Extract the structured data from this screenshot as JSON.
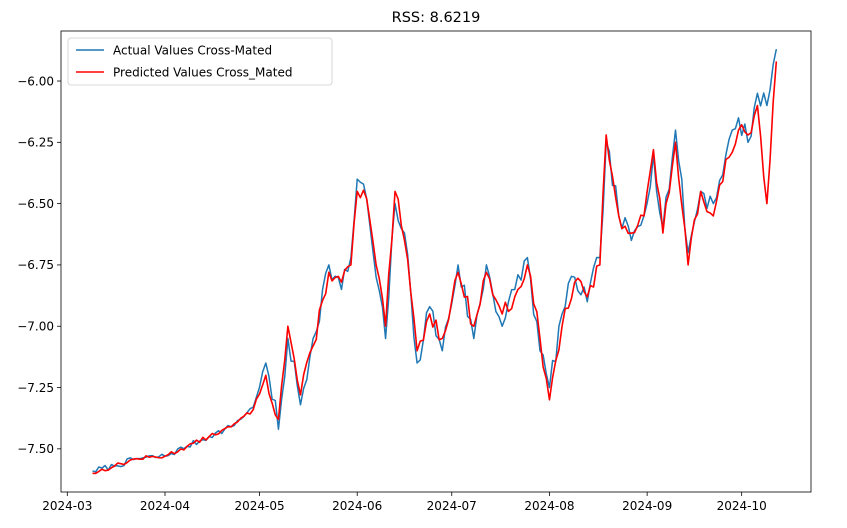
{
  "chart_data": {
    "type": "line",
    "title": "RSS: 8.6219",
    "xlabel": "",
    "ylabel": "",
    "x_range": [
      "2024-03-09",
      "2024-10-12"
    ],
    "xlim": [
      "2024-02-28",
      "2024-10-23"
    ],
    "ylim": [
      -7.676,
      -5.796
    ],
    "x_ticks": [
      "2024-03",
      "2024-04",
      "2024-05",
      "2024-06",
      "2024-07",
      "2024-08",
      "2024-09",
      "2024-10"
    ],
    "y_ticks": [
      -6.0,
      -6.25,
      -6.5,
      -6.75,
      -7.0,
      -7.25,
      -7.5
    ],
    "y_tick_labels": [
      "−6.00",
      "−6.25",
      "−6.50",
      "−6.75",
      "−7.00",
      "−7.25",
      "−7.50"
    ],
    "grid": false,
    "legend": "top-left",
    "series": [
      {
        "name": "Actual Values Cross-Mated",
        "color": "#1f77b4",
        "anchors": [
          [
            "2024-03-09",
            -7.59
          ],
          [
            "2024-03-16",
            -7.57
          ],
          [
            "2024-03-23",
            -7.54
          ],
          [
            "2024-04-01",
            -7.53
          ],
          [
            "2024-04-08",
            -7.49
          ],
          [
            "2024-04-15",
            -7.45
          ],
          [
            "2024-04-22",
            -7.41
          ],
          [
            "2024-04-29",
            -7.33
          ],
          [
            "2024-05-03",
            -7.15
          ],
          [
            "2024-05-07",
            -7.42
          ],
          [
            "2024-05-10",
            -7.05
          ],
          [
            "2024-05-14",
            -7.32
          ],
          [
            "2024-05-18",
            -7.05
          ],
          [
            "2024-05-23",
            -6.75
          ],
          [
            "2024-05-27",
            -6.85
          ],
          [
            "2024-05-30",
            -6.72
          ],
          [
            "2024-06-01",
            -6.4
          ],
          [
            "2024-06-04",
            -6.48
          ],
          [
            "2024-06-07",
            -6.8
          ],
          [
            "2024-06-10",
            -7.05
          ],
          [
            "2024-06-13",
            -6.5
          ],
          [
            "2024-06-16",
            -6.62
          ],
          [
            "2024-06-20",
            -7.15
          ],
          [
            "2024-06-24",
            -6.92
          ],
          [
            "2024-06-28",
            -7.1
          ],
          [
            "2024-07-03",
            -6.75
          ],
          [
            "2024-07-08",
            -7.05
          ],
          [
            "2024-07-12",
            -6.75
          ],
          [
            "2024-07-17",
            -7.0
          ],
          [
            "2024-07-21",
            -6.85
          ],
          [
            "2024-07-25",
            -6.72
          ],
          [
            "2024-07-29",
            -7.1
          ],
          [
            "2024-08-01",
            -7.25
          ],
          [
            "2024-08-05",
            -6.95
          ],
          [
            "2024-08-09",
            -6.8
          ],
          [
            "2024-08-13",
            -6.9
          ],
          [
            "2024-08-17",
            -6.72
          ],
          [
            "2024-08-19",
            -6.25
          ],
          [
            "2024-08-23",
            -6.55
          ],
          [
            "2024-08-27",
            -6.65
          ],
          [
            "2024-08-31",
            -6.55
          ],
          [
            "2024-09-03",
            -6.3
          ],
          [
            "2024-09-06",
            -6.6
          ],
          [
            "2024-09-10",
            -6.2
          ],
          [
            "2024-09-14",
            -6.7
          ],
          [
            "2024-09-18",
            -6.45
          ],
          [
            "2024-09-22",
            -6.5
          ],
          [
            "2024-09-26",
            -6.3
          ],
          [
            "2024-09-30",
            -6.15
          ],
          [
            "2024-10-03",
            -6.25
          ],
          [
            "2024-10-06",
            -6.05
          ],
          [
            "2024-10-09",
            -6.1
          ],
          [
            "2024-10-12",
            -5.87
          ]
        ],
        "noise": 0.05,
        "seed": 7
      },
      {
        "name": "Predicted Values Cross_Mated",
        "color": "#ff0000",
        "anchors": [
          [
            "2024-03-09",
            -7.6
          ],
          [
            "2024-03-16",
            -7.57
          ],
          [
            "2024-03-23",
            -7.54
          ],
          [
            "2024-04-01",
            -7.53
          ],
          [
            "2024-04-08",
            -7.49
          ],
          [
            "2024-04-15",
            -7.45
          ],
          [
            "2024-04-22",
            -7.41
          ],
          [
            "2024-04-29",
            -7.34
          ],
          [
            "2024-05-03",
            -7.2
          ],
          [
            "2024-05-07",
            -7.38
          ],
          [
            "2024-05-10",
            -7.0
          ],
          [
            "2024-05-14",
            -7.28
          ],
          [
            "2024-05-18",
            -7.08
          ],
          [
            "2024-05-23",
            -6.78
          ],
          [
            "2024-05-27",
            -6.82
          ],
          [
            "2024-05-30",
            -6.75
          ],
          [
            "2024-06-01",
            -6.45
          ],
          [
            "2024-06-04",
            -6.48
          ],
          [
            "2024-06-07",
            -6.75
          ],
          [
            "2024-06-10",
            -7.0
          ],
          [
            "2024-06-13",
            -6.45
          ],
          [
            "2024-06-16",
            -6.65
          ],
          [
            "2024-06-20",
            -7.1
          ],
          [
            "2024-06-24",
            -6.95
          ],
          [
            "2024-06-28",
            -7.05
          ],
          [
            "2024-07-03",
            -6.78
          ],
          [
            "2024-07-08",
            -7.0
          ],
          [
            "2024-07-12",
            -6.78
          ],
          [
            "2024-07-17",
            -6.95
          ],
          [
            "2024-07-21",
            -6.88
          ],
          [
            "2024-07-25",
            -6.75
          ],
          [
            "2024-07-29",
            -7.05
          ],
          [
            "2024-08-01",
            -7.3
          ],
          [
            "2024-08-05",
            -7.0
          ],
          [
            "2024-08-09",
            -6.82
          ],
          [
            "2024-08-13",
            -6.88
          ],
          [
            "2024-08-17",
            -6.75
          ],
          [
            "2024-08-19",
            -6.22
          ],
          [
            "2024-08-23",
            -6.55
          ],
          [
            "2024-08-27",
            -6.62
          ],
          [
            "2024-08-31",
            -6.55
          ],
          [
            "2024-09-03",
            -6.28
          ],
          [
            "2024-09-06",
            -6.62
          ],
          [
            "2024-09-10",
            -6.25
          ],
          [
            "2024-09-14",
            -6.75
          ],
          [
            "2024-09-18",
            -6.45
          ],
          [
            "2024-09-22",
            -6.55
          ],
          [
            "2024-09-26",
            -6.32
          ],
          [
            "2024-09-30",
            -6.2
          ],
          [
            "2024-10-03",
            -6.22
          ],
          [
            "2024-10-06",
            -6.1
          ],
          [
            "2024-10-09",
            -6.5
          ],
          [
            "2024-10-12",
            -5.92
          ]
        ],
        "noise": 0.035,
        "seed": 13
      }
    ]
  }
}
